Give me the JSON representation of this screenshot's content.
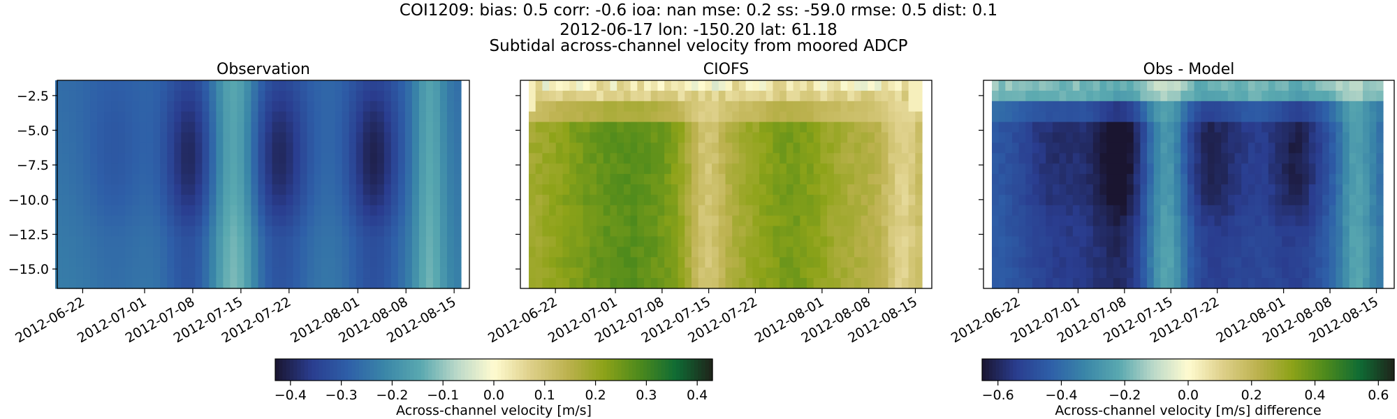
{
  "header": {
    "line1": "COI1209: bias: 0.5  corr: -0.6  ioa: nan  mse: 0.2  ss: -59.0  rmse: 0.5  dist: 0.1",
    "line2": "2012-06-17 lon: -150.20 lat: 61.18",
    "line3": "Subtidal across-channel velocity from moored ADCP"
  },
  "chart_data": [
    {
      "type": "heatmap",
      "title": "Observation",
      "ylabel": "",
      "x_range": [
        "2012-06-18",
        "2012-08-16"
      ],
      "ylim": [
        -16.4,
        -1.4
      ],
      "xticks": [
        "2012-06-22",
        "2012-07-01",
        "2012-07-08",
        "2012-07-15",
        "2012-07-22",
        "2012-08-01",
        "2012-08-08",
        "2012-08-15"
      ],
      "yticks": [
        -2.5,
        -5.0,
        -7.5,
        -10.0,
        -12.5,
        -15.0
      ],
      "colormap": "diverging-delta",
      "clim": [
        -0.43,
        0.43
      ],
      "colorbar": "Across-channel velocity [m/s]"
    },
    {
      "type": "heatmap",
      "title": "CIOFS",
      "x_range": [
        "2012-06-18",
        "2012-08-16"
      ],
      "ylim": [
        -16.4,
        -1.4
      ],
      "xticks": [
        "2012-06-22",
        "2012-07-01",
        "2012-07-08",
        "2012-07-15",
        "2012-07-22",
        "2012-08-01",
        "2012-08-08",
        "2012-08-15"
      ],
      "colormap": "diverging-delta",
      "clim": [
        -0.43,
        0.43
      ],
      "colorbar": "Across-channel velocity [m/s]"
    },
    {
      "type": "heatmap",
      "title": "Obs - Model",
      "x_range": [
        "2012-06-18",
        "2012-08-16"
      ],
      "ylim": [
        -16.4,
        -1.4
      ],
      "xticks": [
        "2012-06-22",
        "2012-07-01",
        "2012-07-08",
        "2012-07-15",
        "2012-07-22",
        "2012-08-01",
        "2012-08-08",
        "2012-08-15"
      ],
      "colormap": "diverging-delta",
      "clim": [
        -0.65,
        0.65
      ],
      "colorbar": "Across-channel velocity [m/s] difference"
    }
  ],
  "colorbars": [
    {
      "label": "Across-channel velocity [m/s]",
      "ticks": [
        -0.4,
        -0.3,
        -0.2,
        -0.1,
        0.0,
        0.1,
        0.2,
        0.3,
        0.4
      ],
      "tick_labels": [
        "−0.4",
        "−0.3",
        "−0.2",
        "−0.1",
        "0.0",
        "0.1",
        "0.2",
        "0.3",
        "0.4"
      ],
      "range": [
        -0.43,
        0.43
      ]
    },
    {
      "label": "Across-channel velocity [m/s] difference",
      "ticks": [
        -0.6,
        -0.4,
        -0.2,
        0.0,
        0.2,
        0.4,
        0.6
      ],
      "tick_labels": [
        "−0.6",
        "−0.4",
        "−0.2",
        "0.0",
        "0.2",
        "0.4",
        "0.6"
      ],
      "range": [
        -0.65,
        0.65
      ]
    }
  ],
  "colors": {
    "colormap": [
      "#1a1530",
      "#2a3d8f",
      "#2e5fa8",
      "#3a86a8",
      "#5aa9b0",
      "#bcd9c9",
      "#fffbd0",
      "#ded08a",
      "#bdb250",
      "#8ea319",
      "#4d8a1c",
      "#0f6b34",
      "#1f231a"
    ]
  },
  "yaxis_tick_labels": [
    "−2.5",
    "−5.0",
    "−7.5",
    "−10.0",
    "−12.5",
    "−15.0"
  ]
}
